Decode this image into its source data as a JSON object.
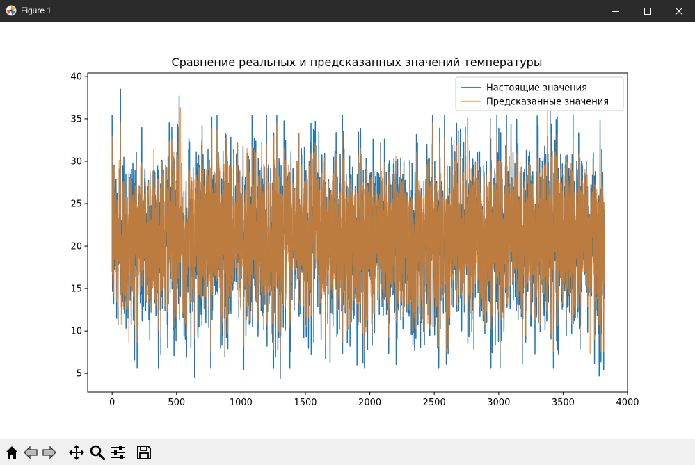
{
  "window": {
    "title": "Figure 1",
    "app_icon": "matplotlib-icon",
    "controls": [
      "minimize-icon",
      "maximize-icon",
      "close-icon"
    ]
  },
  "toolbar": {
    "tools": [
      "home-icon",
      "back-arrow-icon",
      "forward-arrow-icon",
      "pan-icon",
      "zoom-icon",
      "configure-subplots-icon",
      "save-icon"
    ]
  },
  "chart_data": {
    "type": "line",
    "title": "Сравнение реальных и предсказанных значений температуры",
    "xlabel": "",
    "ylabel": "",
    "xlim": [
      -190,
      4000
    ],
    "ylim": [
      2.8,
      40.4
    ],
    "x_ticks": [
      0,
      500,
      1000,
      1500,
      2000,
      2500,
      3000,
      3500,
      4000
    ],
    "y_ticks": [
      5,
      10,
      15,
      20,
      25,
      30,
      35,
      40
    ],
    "x_range": [
      0,
      3820
    ],
    "legend_position": "upper-right",
    "grid": false,
    "series": [
      {
        "name": "Настоящие значения",
        "color": "#1f77b4",
        "alpha": 1.0,
        "n_points": 3820,
        "mean": 21,
        "band": [
          11,
          31
        ],
        "extremes": [
          {
            "x": 65,
            "y": 38.5
          },
          {
            "x": 520,
            "y": 37.7
          },
          {
            "x": 640,
            "y": 4.5
          },
          {
            "x": 1305,
            "y": 4.4
          },
          {
            "x": 1020,
            "y": 5.4
          },
          {
            "x": 1900,
            "y": 6.0
          },
          {
            "x": 3400,
            "y": 4.6
          },
          {
            "x": 3400,
            "y": 36.4
          },
          {
            "x": 3780,
            "y": 4.7
          },
          {
            "x": 3815,
            "y": 5.4
          }
        ]
      },
      {
        "name": "Предсказанные значения",
        "color": "#ff7f0e",
        "alpha": 0.7,
        "n_points": 3820,
        "mean": 21,
        "band": [
          12,
          30
        ],
        "extremes": [
          {
            "x": 530,
            "y": 36.3
          },
          {
            "x": 3380,
            "y": 36.5
          },
          {
            "x": 130,
            "y": 8.6
          },
          {
            "x": 3710,
            "y": 7.3
          }
        ]
      }
    ]
  }
}
